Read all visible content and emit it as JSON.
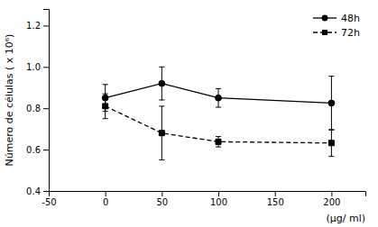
{
  "chart_data": {
    "type": "line",
    "x_label": "(µg/ ml)",
    "y_label": "Número de células ( x 10⁶)",
    "x": [
      0,
      50,
      100,
      200
    ],
    "xlim": [
      -50,
      230
    ],
    "ylim": [
      0.4,
      1.28
    ],
    "xticks": [
      -50,
      0,
      50,
      100,
      150,
      200
    ],
    "yticks": [
      0.4,
      0.6,
      0.8,
      {
        "value": 1.0,
        "label": "1.0"
      },
      1.2
    ],
    "grid": false,
    "legend": "upper right",
    "series": [
      {
        "name": "48h",
        "color": "#000000",
        "marker": "circle",
        "line_style": "solid",
        "values": [
          0.85,
          0.92,
          0.85,
          0.825
        ],
        "errors": [
          0.065,
          0.08,
          0.045,
          0.13
        ]
      },
      {
        "name": "72h",
        "color": "#000000",
        "marker": "square",
        "line_style": "dashed",
        "values": [
          0.81,
          0.68,
          0.638,
          0.632
        ],
        "errors": [
          0.06,
          0.13,
          0.025,
          0.065
        ]
      }
    ]
  }
}
